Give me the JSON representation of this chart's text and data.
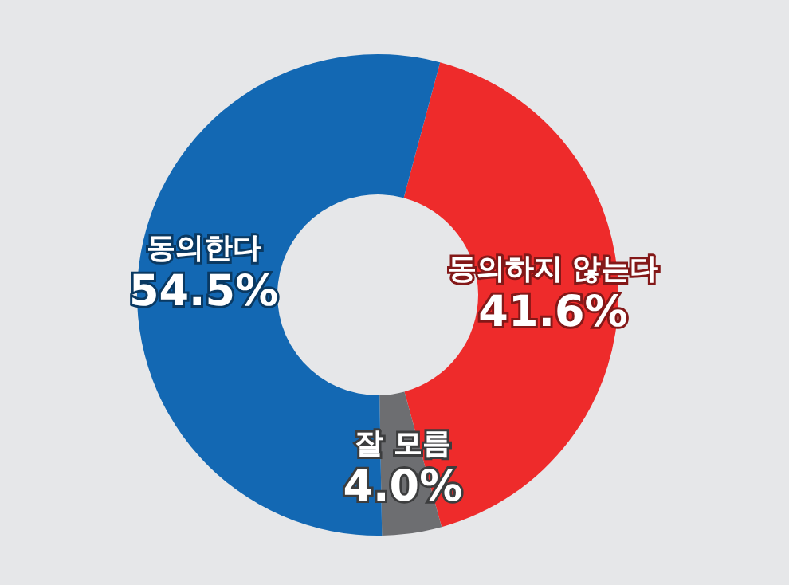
{
  "chart_data": {
    "type": "donut",
    "categories": [
      "동의하지 않는다",
      "잘 모름",
      "동의한다"
    ],
    "values": [
      41.6,
      4.0,
      54.5
    ],
    "value_labels": [
      "41.6%",
      "4.0%",
      "54.5%"
    ],
    "colors": [
      "#ee2b2b",
      "#6d6e71",
      "#1368b3"
    ]
  }
}
